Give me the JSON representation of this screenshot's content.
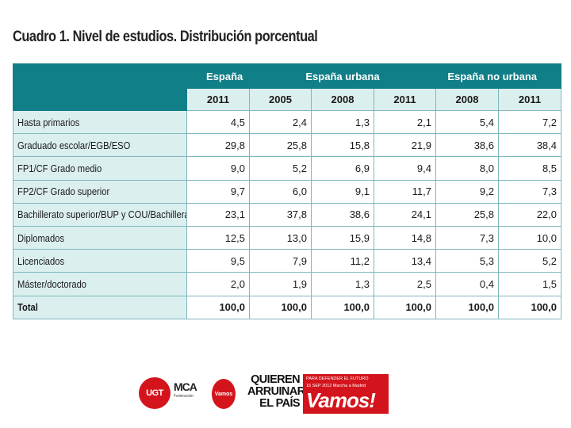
{
  "title": "Cuadro 1. Nivel de estudios. Distribución porcentual",
  "table": {
    "groups": [
      "España",
      "España urbana",
      "España no urbana"
    ],
    "years": [
      "2011",
      "2005",
      "2008",
      "2011",
      "2008",
      "2011"
    ],
    "rows": [
      {
        "label": "Hasta primarios",
        "values": [
          "4,5",
          "2,4",
          "1,3",
          "2,1",
          "5,4",
          "7,2"
        ]
      },
      {
        "label": "Graduado escolar/EGB/ESO",
        "values": [
          "29,8",
          "25,8",
          "15,8",
          "21,9",
          "38,6",
          "38,4"
        ]
      },
      {
        "label": "FP1/CF Grado medio",
        "values": [
          "9,0",
          "5,2",
          "6,9",
          "9,4",
          "8,0",
          "8,5"
        ]
      },
      {
        "label": "FP2/CF Grado superior",
        "values": [
          "9,7",
          "6,0",
          "9,1",
          "11,7",
          "9,2",
          "7,3"
        ]
      },
      {
        "label": "Bachillerato superior/BUP y COU/Bachillerato",
        "values": [
          "23,1",
          "37,8",
          "38,6",
          "24,1",
          "25,8",
          "22,0"
        ]
      },
      {
        "label": "Diplomados",
        "values": [
          "12,5",
          "13,0",
          "15,9",
          "14,8",
          "7,3",
          "10,0"
        ]
      },
      {
        "label": "Licenciados",
        "values": [
          "9,5",
          "7,9",
          "11,2",
          "13,4",
          "5,3",
          "5,2"
        ]
      },
      {
        "label": "Máster/doctorado",
        "values": [
          "2,0",
          "1,9",
          "1,3",
          "2,5",
          "0,4",
          "1,5"
        ]
      },
      {
        "label": "Total",
        "values": [
          "100,0",
          "100,0",
          "100,0",
          "100,0",
          "100,0",
          "100,0"
        ]
      }
    ]
  },
  "footer": {
    "ugt_logo": "UGT",
    "mca_logo": "MCA",
    "mca_sub": "Federación",
    "vamos_small": "Vamos",
    "quieren_lines": [
      "QUIEREN",
      "ARRUINAR",
      "EL PAÍS"
    ],
    "banner_small": "PARA DEFENDER EL FUTURO",
    "banner_date": "15 SEP 2012  Marcha a Madrid",
    "banner_big": "Vamos!"
  },
  "colors": {
    "header_teal": "#117f87",
    "cell_light": "#dcefef",
    "grid": "#7fb7bc",
    "logo_red": "#d4141c"
  }
}
